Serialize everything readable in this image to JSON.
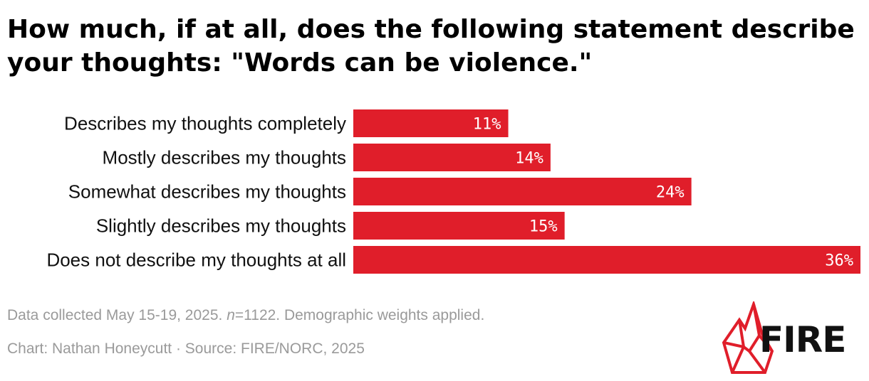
{
  "chart_data": {
    "type": "bar",
    "orientation": "horizontal",
    "title": "How much, if at all, does the following statement describe your thoughts: \"Words can be violence.\"",
    "categories": [
      "Describes my thoughts completely",
      "Mostly describes my thoughts",
      "Somewhat describes my thoughts",
      "Slightly describes my thoughts",
      "Does not describe my thoughts at all"
    ],
    "values": [
      11,
      14,
      24,
      15,
      36
    ],
    "value_labels": [
      "11%",
      "14%",
      "24%",
      "15%",
      "36%"
    ],
    "xlim": [
      0,
      36
    ],
    "unit": "%",
    "bar_color": "#e01e2a",
    "grid": false,
    "legend": "none"
  },
  "footer": {
    "note_prefix": "Data collected May 15-19, 2025. ",
    "note_n": "n",
    "note_suffix": "=1122. Demographic weights applied.",
    "credit": "Chart: Nathan Honeycutt · Source: FIRE/NORC, 2025"
  },
  "logo": {
    "text": "FIRE",
    "color": "#e01e2a"
  }
}
